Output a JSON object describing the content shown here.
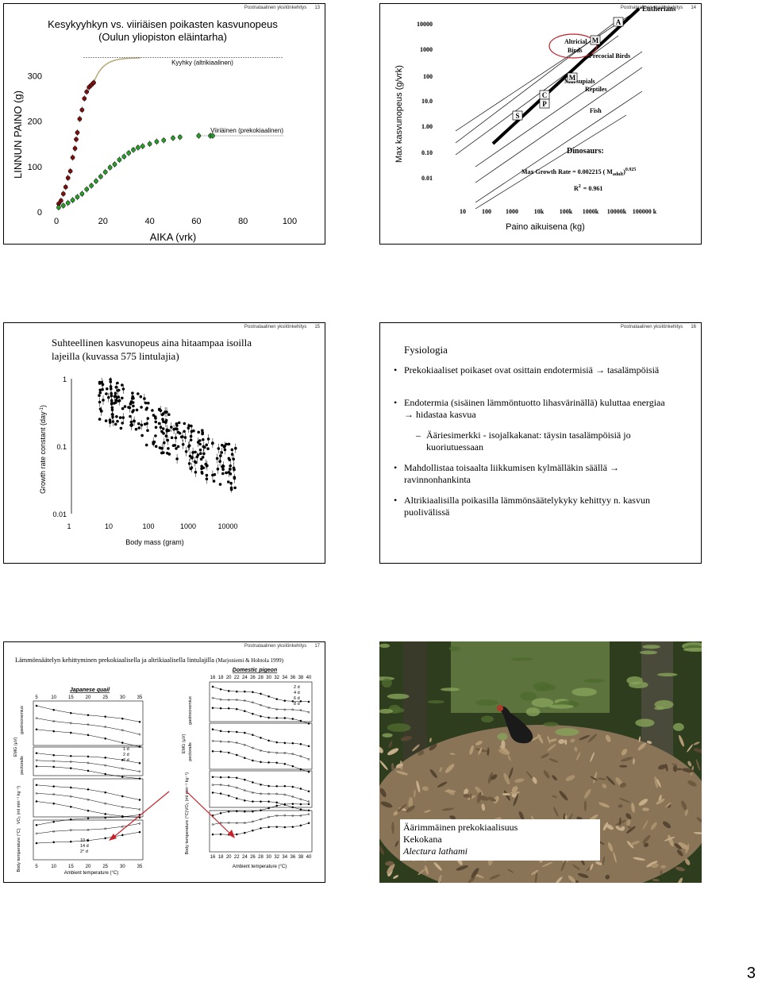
{
  "page_number": "3",
  "slides": [
    {
      "header": {
        "org": "Postnataalinen yksilönkehitys",
        "num": "13"
      },
      "title": "Kesykyyhkyn vs. viiriäisen poikasten kasvunopeus (Oulun yliopiston eläintarha)",
      "chart_data": {
        "type": "scatter",
        "ylabel": "LINNUN PAINO (g)",
        "xlabel": "AIKA (vrk)",
        "xlim": [
          0,
          100
        ],
        "ylim": [
          0,
          350
        ],
        "xticks": [
          "0",
          "20",
          "40",
          "60",
          "80",
          "100"
        ],
        "yticks": [
          "0",
          "100",
          "200",
          "300"
        ],
        "series": [
          {
            "name": "Kyyhky (altrikiaalinen)",
            "color": "#7a1010",
            "x": [
              1,
              2,
              3,
              4,
              5,
              6,
              7,
              8,
              8.5,
              9,
              10,
              11,
              12,
              13,
              14,
              15,
              16
            ],
            "y": [
              18,
              25,
              40,
              55,
              75,
              90,
              120,
              140,
              160,
              175,
              205,
              225,
              250,
              265,
              275,
              280,
              285
            ]
          },
          {
            "name": "Viiriäinen (prekokiaalinen)",
            "color": "#2a9a2a",
            "x": [
              1,
              3,
              5,
              7,
              9,
              11,
              13,
              15,
              17,
              19,
              21,
              23,
              25,
              27,
              29,
              31,
              33,
              35,
              37,
              40,
              43,
              46,
              50,
              53,
              61,
              66,
              67
            ],
            "y": [
              10,
              14,
              20,
              26,
              33,
              40,
              50,
              58,
              68,
              78,
              88,
              98,
              105,
              115,
              122,
              130,
              137,
              142,
              145,
              150,
              155,
              158,
              163,
              165,
              168,
              168,
              168
            ]
          }
        ],
        "fit_color": "#b8a878"
      }
    },
    {
      "header": {
        "org": "Postnataalinen yksilönkehitys",
        "num": "14"
      },
      "chart_data": {
        "type": "line",
        "ylabel": "Max kasvunopeus (g/vrk)",
        "xlabel": "Paino aikuisena (kg)",
        "yticks": [
          "10000",
          "1000",
          "100",
          "10.0",
          "1.00",
          "0.10",
          "0.01"
        ],
        "xticks": [
          "10",
          "100",
          "1000",
          "10k",
          "100k",
          "1000k",
          "10000k",
          "100000 k"
        ],
        "series_labels": [
          "Eutherians",
          "Altricial Birds",
          "Precocial Birds",
          "Marsupials",
          "Reptiles",
          "Fish"
        ],
        "markers": [
          "A",
          "M",
          "C",
          "P",
          "S",
          "M"
        ],
        "annotations": [
          "Dinosaurs:",
          "Max Growth Rate = 0.002215 ( M",
          "adult",
          "0.925",
          "R",
          "2",
          "= 0.961"
        ]
      }
    },
    {
      "header": {
        "org": "Postnataalinen yksilönkehitys",
        "num": "15"
      },
      "title": "Suhteellinen kasvunopeus aina hitaampaa isoilla lajeilla (kuvassa 575 lintulajia)",
      "chart_data": {
        "type": "scatter",
        "ylabel": "Growth rate constant (day",
        "ylabel_sup": "-1",
        "ylabel_close": ")",
        "xlabel": "Body  mass (gram)",
        "xticks": [
          "1",
          "10",
          "100",
          "1000",
          "10000"
        ],
        "yticks": [
          "1",
          "0.1",
          "0.01"
        ],
        "log_x": true,
        "log_y": true
      }
    },
    {
      "header": {
        "org": "Postnataalinen yksilönkehitys",
        "num": "16"
      },
      "title": "Fysiologia",
      "bullets": [
        "Prekokiaaliset poikaset ovat osittain endotermisiä → tasalämpöisiä",
        "Endotermia (sisäinen lämmöntuotto lihasvärinällä) kuluttaa energiaa → hidastaa kasvua",
        "Ääriesimerkki - isojalkakanat: täysin tasalämpöisiä jo kuoriutuessaan",
        "Mahdollistaa toisaalta liikkumisen kylmälläkin säällä → ravinnonhankinta",
        "Altrikiaalisilla poikasilla lämmönsäätelykyky kehittyy n. kasvun puolivälissä"
      ],
      "sub_bullet_marker": "–",
      "bullet_marker": "•"
    },
    {
      "header": {
        "org": "Postnataalinen yksilönkehitys",
        "num": "17"
      },
      "title": "Lämmönsäätelyn kehittyminen prekokiaalisella ja altrikiaalisella lintulajilla",
      "citation": "(Marjoniemi & Hohtola 1999)",
      "left_panel": {
        "title": "Japanese quail",
        "top_ticks": [
          "5",
          "10",
          "15",
          "20",
          "25",
          "30",
          "35"
        ],
        "bottom_ticks": [
          "5",
          "10",
          "15",
          "20",
          "25",
          "30",
          "35"
        ],
        "xlabel": "Ambient temperature (°C)",
        "row_labels": [
          "EMG (µV)",
          "gastrocnemius",
          "pectoralis",
          "VO₂ (ml min⁻¹ kg⁻¹)",
          "Body temperature (°C)"
        ],
        "legend_a": [
          "1 d",
          "2 d",
          "7 d"
        ],
        "legend_b": [
          "10 d",
          "14 d",
          "2° d"
        ]
      },
      "right_panel": {
        "title": "Domestic pigeon",
        "top_ticks": [
          "16",
          "18",
          "20",
          "22",
          "24",
          "26",
          "28",
          "30",
          "32",
          "34",
          "36",
          "38",
          "40"
        ],
        "bottom_ticks": [
          "16",
          "18",
          "20",
          "22",
          "24",
          "26",
          "28",
          "30",
          "32",
          "34",
          "36",
          "38",
          "40"
        ],
        "xlabel": "Ambient temperature (°C)",
        "row_labels": [
          "EMG (µV)",
          "gastrocnemius",
          "pectoralis",
          "VO₂ (ml min⁻¹ kg⁻¹)",
          "Body temperature (°C)"
        ],
        "legend": [
          "2 d",
          "4 d",
          "6 d",
          "8 d"
        ]
      }
    },
    {
      "caption": [
        "Äärimmäinen prekokiaalisuus",
        "Kekokana",
        "Alectura lathami"
      ]
    }
  ]
}
